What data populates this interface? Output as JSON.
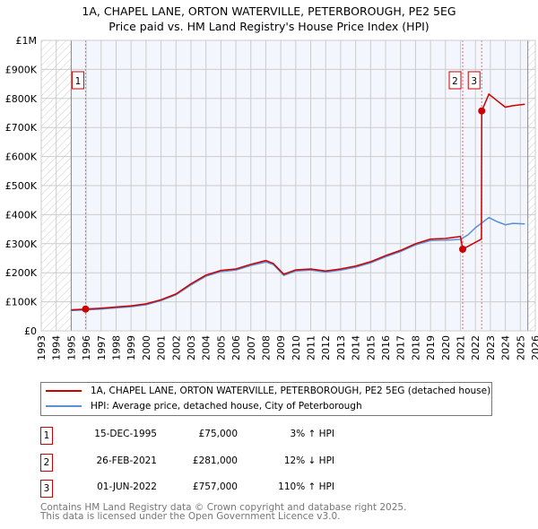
{
  "chart_data": {
    "type": "line",
    "title": "1A, CHAPEL LANE, ORTON WATERVILLE, PETERBOROUGH, PE2 5EG",
    "subtitle": "Price paid vs. HM Land Registry's House Price Index (HPI)",
    "xlim": [
      1993,
      2026
    ],
    "ylim": [
      0,
      1000000
    ],
    "x_ticks": [
      "1993",
      "1994",
      "1995",
      "1996",
      "1997",
      "1998",
      "1999",
      "2000",
      "2001",
      "2002",
      "2003",
      "2004",
      "2005",
      "2006",
      "2007",
      "2008",
      "2009",
      "2010",
      "2011",
      "2012",
      "2013",
      "2014",
      "2015",
      "2016",
      "2017",
      "2018",
      "2019",
      "2020",
      "2021",
      "2022",
      "2023",
      "2024",
      "2025",
      "2026"
    ],
    "y_ticks": [
      {
        "v": 0,
        "label": "£0"
      },
      {
        "v": 100000,
        "label": "£100K"
      },
      {
        "v": 200000,
        "label": "£200K"
      },
      {
        "v": 300000,
        "label": "£300K"
      },
      {
        "v": 400000,
        "label": "£400K"
      },
      {
        "v": 500000,
        "label": "£500K"
      },
      {
        "v": 600000,
        "label": "£600K"
      },
      {
        "v": 700000,
        "label": "£700K"
      },
      {
        "v": 800000,
        "label": "£800K"
      },
      {
        "v": 900000,
        "label": "£900K"
      },
      {
        "v": 1000000,
        "label": "£1M"
      }
    ],
    "series": [
      {
        "name": "1A, CHAPEL LANE, ORTON WATERVILLE, PETERBOROUGH, PE2 5EG (detached house)",
        "color": "#cc0000",
        "x": [
          1995.0,
          1995.96,
          1997,
          1998,
          1999,
          2000,
          2001,
          2002,
          2003,
          2004,
          2005,
          2006,
          2007,
          2008,
          2008.5,
          2009.2,
          2010,
          2011,
          2012,
          2013,
          2014,
          2015,
          2016,
          2017,
          2018,
          2019,
          2020,
          2021.0,
          2021.15,
          2022.4,
          2022.42,
          2022.9,
          2023.5,
          2024,
          2024.5,
          2025.3
        ],
        "y": [
          72000,
          75000,
          78000,
          82000,
          86000,
          93000,
          107000,
          127000,
          162000,
          192000,
          208000,
          213000,
          229000,
          242000,
          232000,
          195000,
          210000,
          213000,
          206000,
          213000,
          223000,
          238000,
          259000,
          277000,
          300000,
          316000,
          318000,
          325000,
          281000,
          316000,
          757000,
          815000,
          790000,
          770000,
          775000,
          780000
        ]
      },
      {
        "name": "HPI: Average price, detached house, City of Peterborough",
        "color": "#5b8fd4",
        "x": [
          1995.0,
          1996,
          1997,
          1998,
          1999,
          2000,
          2001,
          2002,
          2003,
          2004,
          2005,
          2006,
          2007,
          2008,
          2008.5,
          2009.2,
          2010,
          2011,
          2012,
          2013,
          2014,
          2015,
          2016,
          2017,
          2018,
          2019,
          2020,
          2021.0,
          2021.5,
          2022,
          2022.9,
          2023.5,
          2024,
          2024.5,
          2025.3
        ],
        "y": [
          70000,
          72000,
          75000,
          79000,
          83000,
          90000,
          104000,
          124000,
          158000,
          188000,
          204000,
          209000,
          225000,
          237000,
          228000,
          191000,
          206000,
          209000,
          202000,
          209000,
          219000,
          234000,
          255000,
          273000,
          296000,
          311000,
          312000,
          315000,
          330000,
          355000,
          390000,
          375000,
          365000,
          370000,
          368000
        ]
      }
    ],
    "sales": [
      {
        "n": "1",
        "x": 1995.96,
        "y": 75000,
        "date": "15-DEC-1995",
        "price": "£75,000",
        "hpi": "3% ↑ HPI"
      },
      {
        "n": "2",
        "x": 2021.15,
        "y": 281000,
        "date": "26-FEB-2021",
        "price": "£281,000",
        "hpi": "12% ↓ HPI"
      },
      {
        "n": "3",
        "x": 2022.42,
        "y": 757000,
        "date": "01-JUN-2022",
        "price": "£757,000",
        "hpi": "110% ↑ HPI"
      }
    ],
    "hatched_before": 1995.0,
    "hatched_after": 2025.5
  },
  "footer": {
    "line1": "Contains HM Land Registry data © Crown copyright and database right 2025.",
    "line2": "This data is licensed under the Open Government Licence v3.0."
  }
}
